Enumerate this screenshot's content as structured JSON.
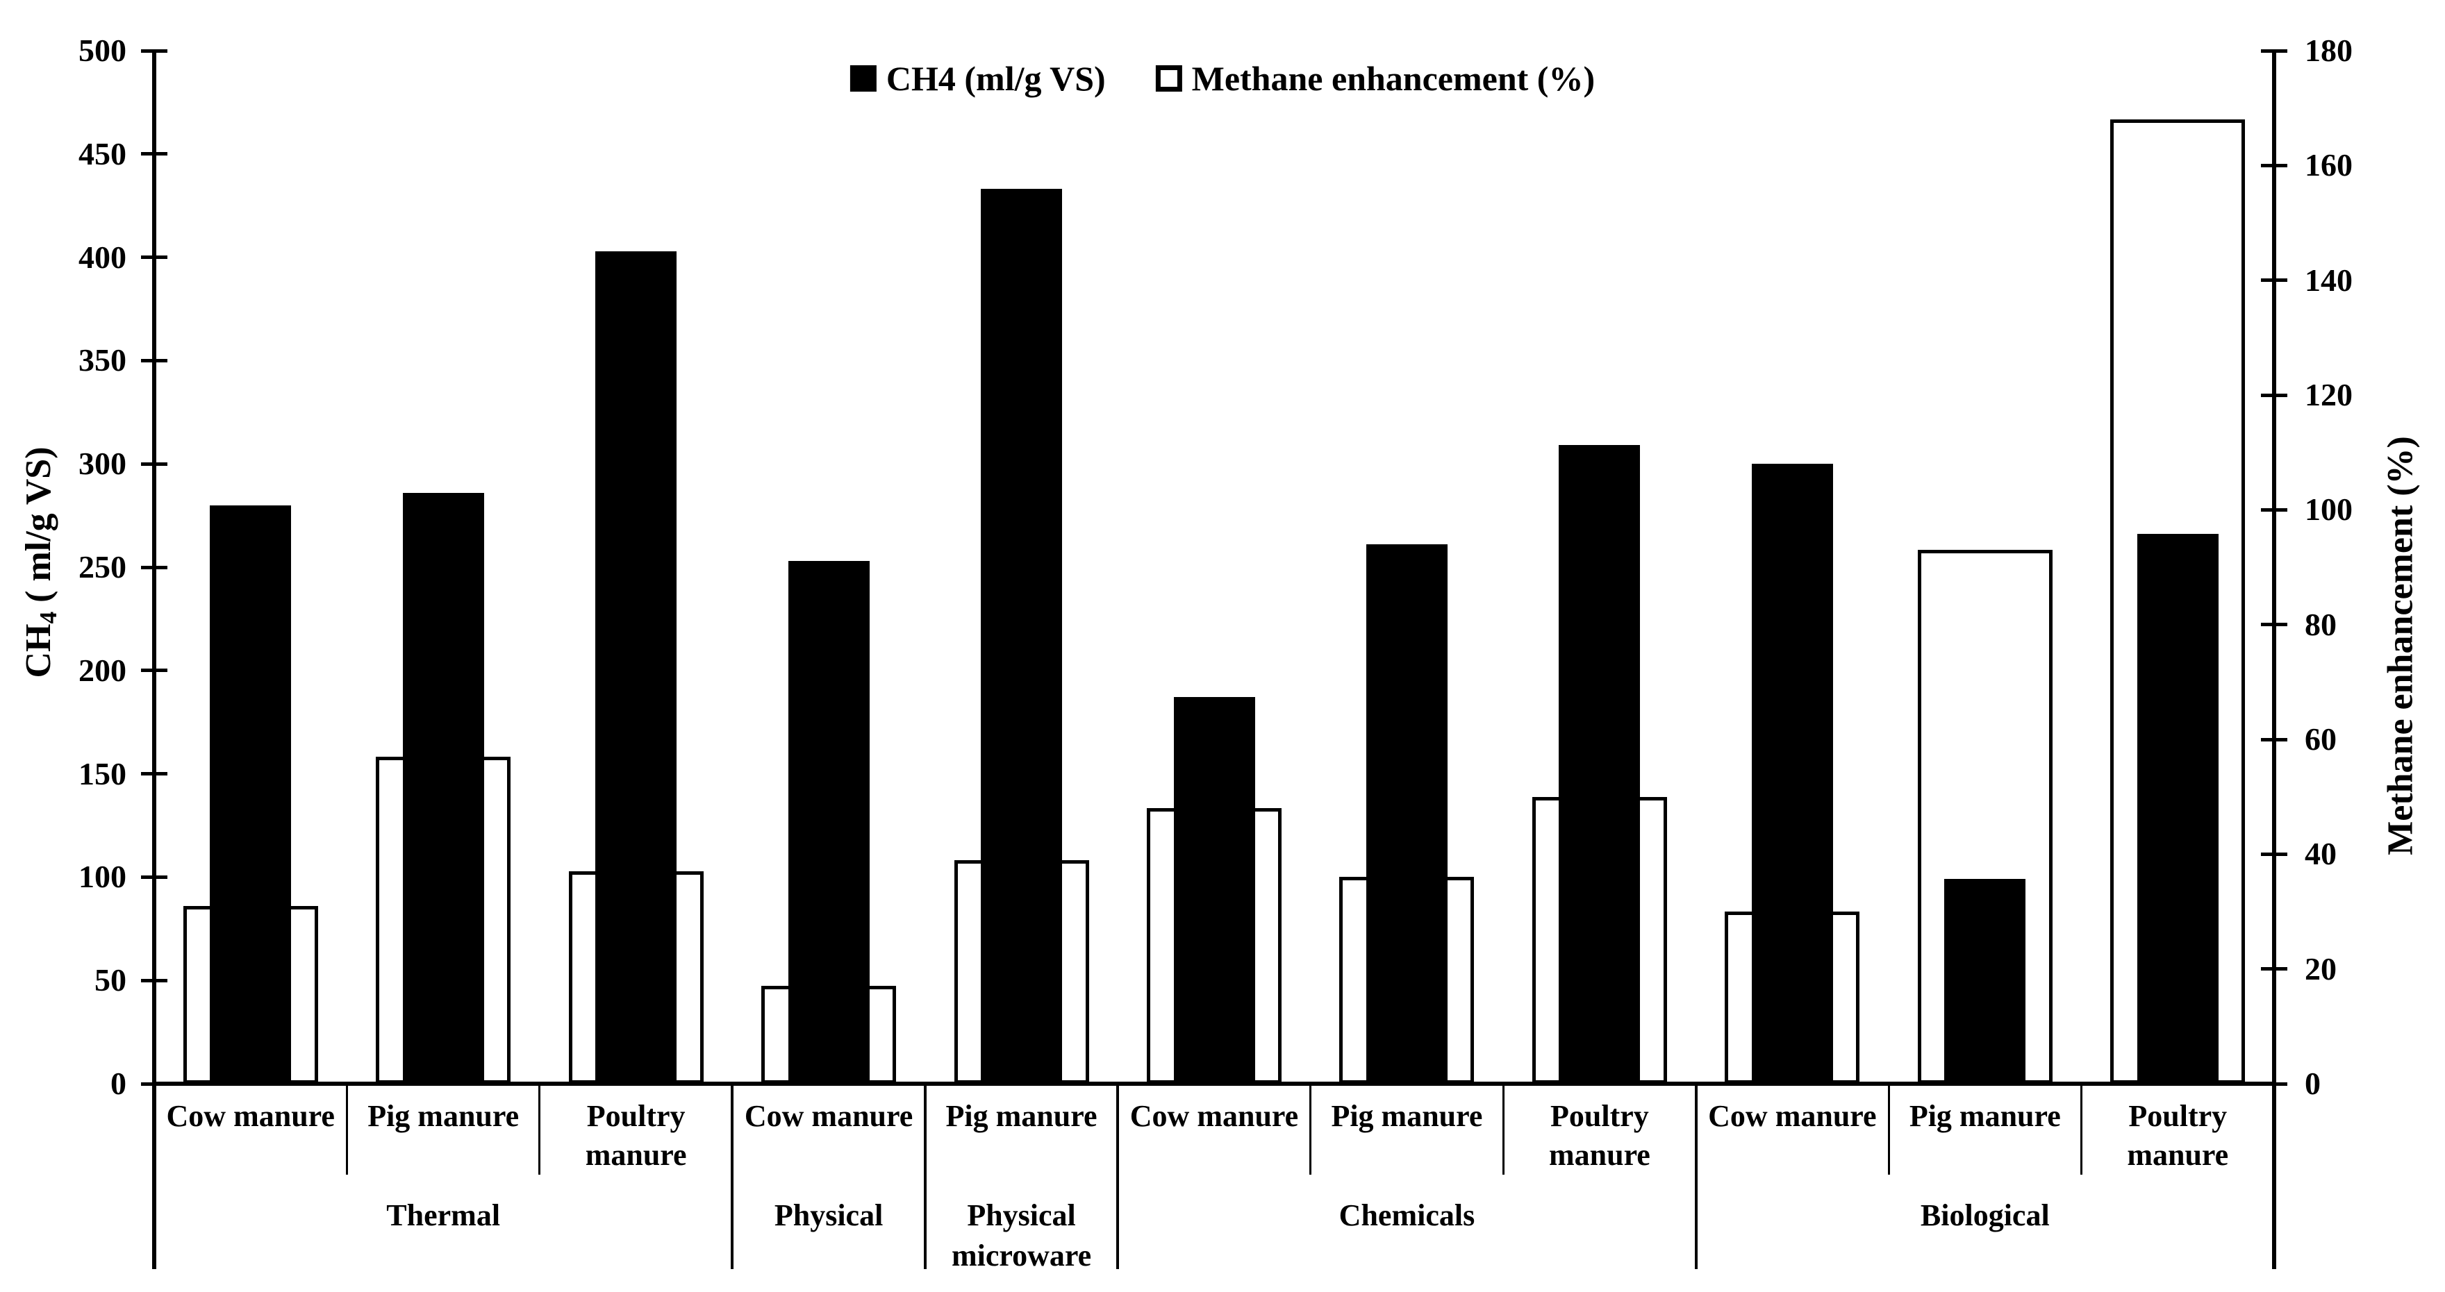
{
  "figure": {
    "background": "#ffffff",
    "bar_color": "#000000",
    "outline_color": "#000000"
  },
  "chart_data": {
    "type": "bar",
    "categories": [
      "Cow manure",
      "Pig manure",
      "Poultry manure",
      "Cow manure",
      "Pig manure",
      "Cow manure",
      "Pig manure",
      "Poultry manure",
      "Cow manure",
      "Pig manure",
      "Poultry manure"
    ],
    "groups": [
      {
        "label": "Thermal",
        "span": 3
      },
      {
        "label": "Physical",
        "span": 1
      },
      {
        "label": "Physical microware",
        "span": 1
      },
      {
        "label": "Chemicals",
        "span": 3
      },
      {
        "label": "Biological",
        "span": 3
      }
    ],
    "series": [
      {
        "name": "CH4 (ml/g VS)",
        "axis": "left",
        "style": "solid-black",
        "values": [
          280,
          286,
          403,
          253,
          433,
          187,
          261,
          309,
          300,
          99,
          266
        ]
      },
      {
        "name": "Methane enhancement (%)",
        "axis": "right",
        "style": "white-outlined",
        "values": [
          31,
          57,
          37,
          17,
          39,
          48,
          36,
          50,
          30,
          93,
          168
        ]
      }
    ],
    "ylabel_left_parts": {
      "prefix": "CH",
      "subscript": "4",
      "suffix": " ( ml/g VS)"
    },
    "ylabel_right": "Methane enhancement (%)",
    "ylim_left": [
      0,
      500
    ],
    "ylim_right": [
      0,
      180
    ],
    "left_ticks": [
      500,
      450,
      400,
      350,
      300,
      250,
      200,
      150,
      100,
      50,
      0
    ],
    "right_ticks": [
      180,
      160,
      140,
      120,
      100,
      80,
      60,
      40,
      20,
      0
    ],
    "grid": false,
    "legend_position": "top-center"
  }
}
